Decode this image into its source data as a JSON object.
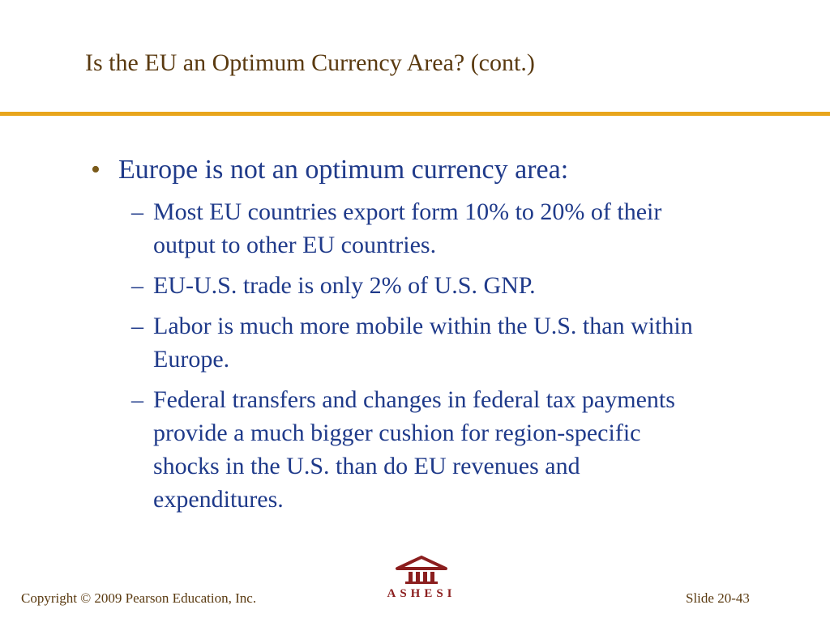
{
  "colors": {
    "title_text": "#5a3a10",
    "rule": "#e8a51c",
    "body_text": "#1f3a8a",
    "bullet_dot": "#7a5a1a",
    "footer_text": "#5a3a10",
    "logo": "#8b1e1e"
  },
  "slide": {
    "title": "Is the EU an Optimum Currency Area? (cont.)",
    "bullet_symbol": "•",
    "main_bullet": "Europe is not an optimum currency area:",
    "dash_symbol": "–",
    "sub_bullets": [
      {
        "lines": [
          "Most EU countries export form 10% to 20% of their",
          "output to other EU countries."
        ]
      },
      {
        "lines": [
          "EU-U.S. trade is only 2% of U.S. GNP."
        ]
      },
      {
        "lines": [
          "Labor is much more mobile within the U.S. than within",
          "Europe."
        ]
      },
      {
        "lines": [
          "Federal transfers and changes in federal tax payments",
          "provide a much bigger cushion for region-specific",
          "shocks in the U.S. than do EU revenues and",
          "expenditures."
        ]
      }
    ]
  },
  "footer": {
    "copyright": "Copyright © 2009 Pearson Education, Inc.",
    "logo_text": "ASHESI",
    "logo_icon": "building-columns-icon",
    "slide_number": "Slide 20-43"
  }
}
